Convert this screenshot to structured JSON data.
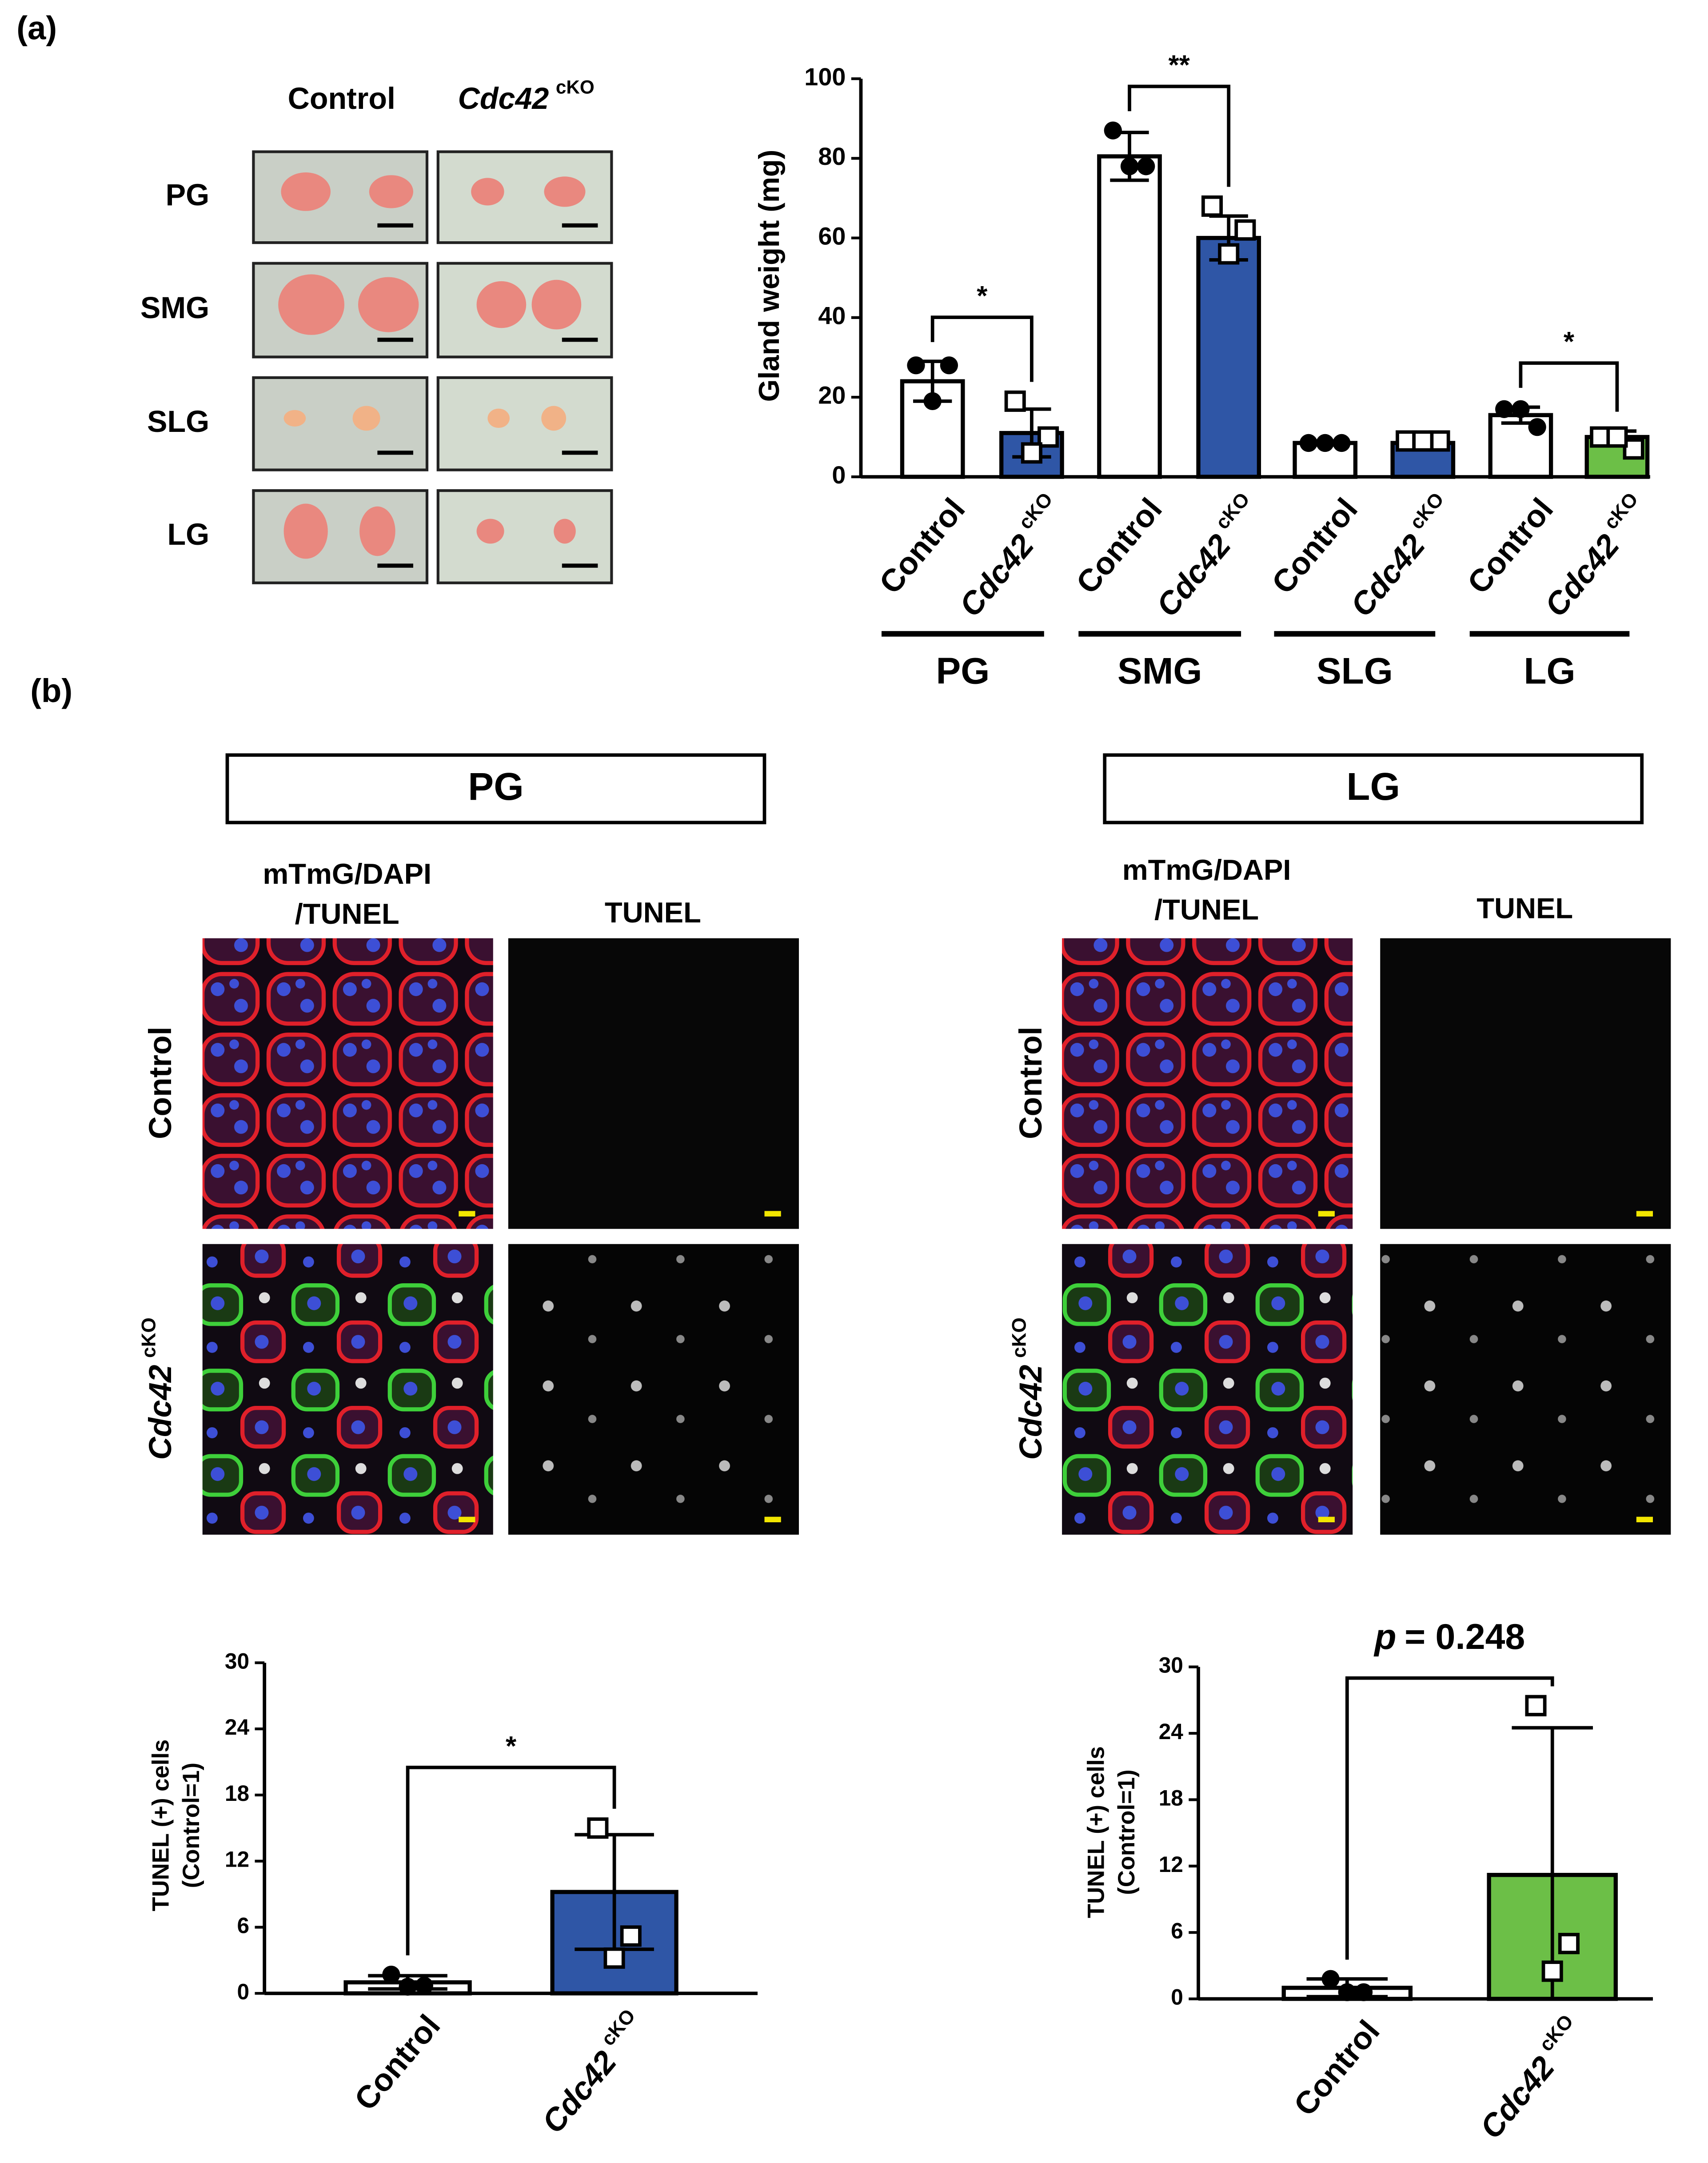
{
  "panel_a": {
    "label": "(a)",
    "photo_columns": [
      {
        "text": "Control"
      },
      {
        "text": "Cdc42",
        "superscript": "cKO"
      }
    ],
    "photo_rows": [
      "PG",
      "SMG",
      "SLG",
      "LG"
    ]
  },
  "panel_b": {
    "label": "(b)",
    "sections": [
      {
        "title": "PG",
        "channels": [
          [
            "mTmG/DAPI",
            "/TUNEL"
          ],
          [
            "TUNEL"
          ]
        ],
        "rows": [
          {
            "text": "Control"
          },
          {
            "text": "Cdc42",
            "superscript": "cKO"
          }
        ]
      },
      {
        "title": "LG",
        "channels": [
          [
            "mTmG/DAPI",
            "/TUNEL"
          ],
          [
            "TUNEL"
          ]
        ],
        "rows": [
          {
            "text": "Control"
          },
          {
            "text": "Cdc42",
            "superscript": "cKO"
          }
        ]
      }
    ]
  },
  "chart_data": [
    {
      "type": "bar",
      "y_label": "Gland weight (mg)",
      "ylim": [
        0,
        100
      ],
      "yticks": [
        0,
        20,
        40,
        60,
        80,
        100
      ],
      "categories": [
        "Control",
        "Cdc42",
        "Control",
        "Cdc42",
        "Control",
        "Cdc42",
        "Control",
        "Cdc42"
      ],
      "category_superscripts": [
        null,
        "cKO",
        null,
        "cKO",
        null,
        "cKO",
        null,
        "cKO"
      ],
      "groups": [
        "PG",
        "SMG",
        "SLG",
        "LG"
      ],
      "significance": [
        "*",
        "**",
        null,
        "*"
      ],
      "values": [
        24,
        11,
        80.5,
        60,
        8.5,
        8.5,
        15.5,
        10
      ],
      "errors": [
        5,
        6,
        6,
        5.5,
        0.5,
        1,
        2,
        1.5
      ],
      "colors": [
        "#ffffff",
        "#2f56a6",
        "#ffffff",
        "#2f56a6",
        "#ffffff",
        "#2f56a6",
        "#ffffff",
        "#6cbf47"
      ],
      "markers": [
        "circle",
        "square",
        "circle",
        "square",
        "circle",
        "square",
        "circle",
        "square"
      ],
      "points": [
        [
          28,
          28,
          19
        ],
        [
          19,
          10,
          6
        ],
        [
          87,
          78,
          78
        ],
        [
          68,
          62,
          56
        ],
        [
          8.5,
          8.5,
          8.5
        ],
        [
          9,
          9,
          9
        ],
        [
          17,
          12.5,
          17
        ],
        [
          10,
          7,
          10
        ]
      ]
    },
    {
      "type": "bar",
      "y_label": [
        "TUNEL (+) cells",
        "(Control=1)"
      ],
      "ylim": [
        0,
        30
      ],
      "yticks": [
        0,
        6,
        12,
        18,
        24,
        30
      ],
      "categories": [
        "Control",
        "Cdc42"
      ],
      "category_superscripts": [
        null,
        "cKO"
      ],
      "significance": "*",
      "values": [
        1,
        9.2
      ],
      "errors": [
        0.6,
        5.2
      ],
      "colors": [
        "#ffffff",
        "#2f56a6"
      ],
      "markers": [
        "circle",
        "square"
      ],
      "points": [
        [
          1.7,
          0.7,
          0.6
        ],
        [
          15,
          5.2,
          3.2
        ]
      ]
    },
    {
      "type": "bar",
      "y_label": [
        "TUNEL (+) cells",
        "(Control=1)"
      ],
      "ylim": [
        0,
        30
      ],
      "yticks": [
        0,
        6,
        12,
        18,
        24,
        30
      ],
      "categories": [
        "Control",
        "Cdc42"
      ],
      "category_superscripts": [
        null,
        "cKO"
      ],
      "significance_parts": [
        "p",
        "= 0.248"
      ],
      "values": [
        1,
        11.2
      ],
      "errors": [
        0.8,
        13.3
      ],
      "colors": [
        "#ffffff",
        "#6cbf47"
      ],
      "markers": [
        "circle",
        "square"
      ],
      "points": [
        [
          1.8,
          0.6,
          0.6
        ],
        [
          26.5,
          5,
          2.5
        ]
      ]
    }
  ]
}
